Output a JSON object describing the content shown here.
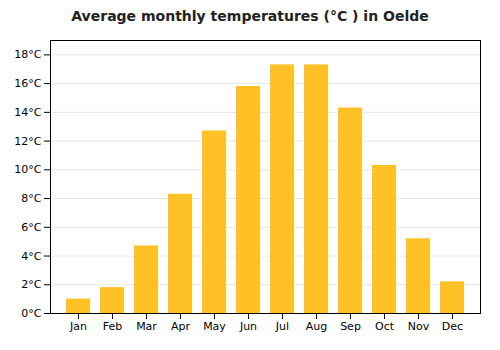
{
  "chart_data": {
    "type": "bar",
    "title": "Average monthly temperatures (°C ) in Oelde",
    "categories": [
      "Jan",
      "Feb",
      "Mar",
      "Apr",
      "May",
      "Jun",
      "Jul",
      "Aug",
      "Sep",
      "Oct",
      "Nov",
      "Dec"
    ],
    "values": [
      1.0,
      1.8,
      4.7,
      8.3,
      12.7,
      15.8,
      17.3,
      17.3,
      14.3,
      10.3,
      5.2,
      2.2
    ],
    "color": "#FFC125",
    "ylim": [
      0,
      19
    ],
    "yticks": [
      {
        "value": 0,
        "label": "0°C"
      },
      {
        "value": 2,
        "label": "2°C"
      },
      {
        "value": 4,
        "label": "4°C"
      },
      {
        "value": 6,
        "label": "6°C"
      },
      {
        "value": 8,
        "label": "8°C"
      },
      {
        "value": 10,
        "label": "10°C"
      },
      {
        "value": 12,
        "label": "12°C"
      },
      {
        "value": 14,
        "label": "14°C"
      },
      {
        "value": 16,
        "label": "16°C"
      },
      {
        "value": 18,
        "label": "18°C"
      }
    ],
    "grid": true
  }
}
